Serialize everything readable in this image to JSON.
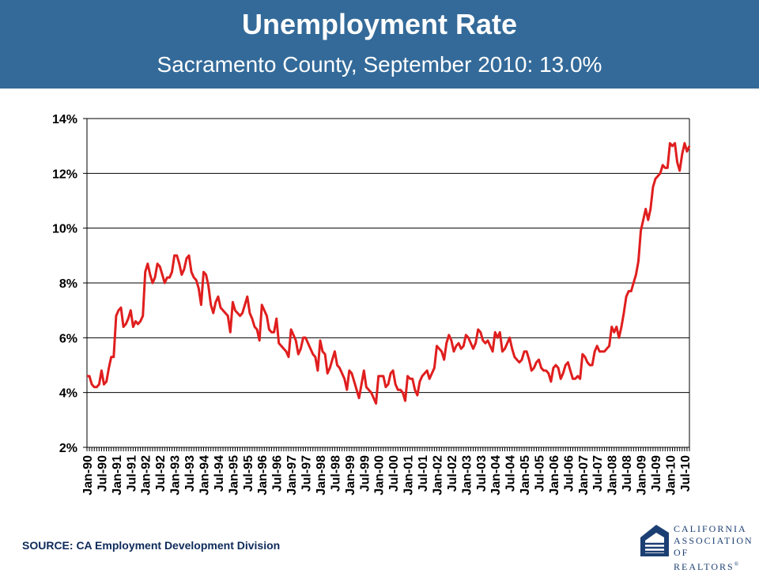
{
  "header": {
    "title": "Unemployment Rate",
    "subtitle": "Sacramento County, September 2010: 13.0%"
  },
  "source": "SOURCE: CA  Employment  Development  Division",
  "logo": {
    "lines": [
      "CALIFORNIA",
      "ASSOCIATION",
      "OF REALTORS"
    ],
    "mark": "®"
  },
  "colors": {
    "banner": "#336a99",
    "series": "#e01e1e",
    "grid": "#000000"
  },
  "chart_data": {
    "type": "line",
    "title": "Unemployment Rate",
    "subtitle": "Sacramento County, September 2010: 13.0%",
    "xlabel": "",
    "ylabel": "",
    "ylim": [
      2,
      14
    ],
    "yticks": [
      2,
      4,
      6,
      8,
      10,
      12,
      14
    ],
    "ytick_labels": [
      "2%",
      "4%",
      "6%",
      "8%",
      "10%",
      "12%",
      "14%"
    ],
    "grid": "horizontal",
    "legend": "none",
    "x_start": "Jan-90",
    "x_end": "Sep-10",
    "xtick_labels": [
      "Jan-90",
      "Jul-90",
      "Jan-91",
      "Jul-91",
      "Jan-92",
      "Jul-92",
      "Jan-93",
      "Jul-93",
      "Jan-94",
      "Jul-94",
      "Jan-95",
      "Jul-95",
      "Jan-96",
      "Jul-96",
      "Jan-97",
      "Jul-97",
      "Jan-98",
      "Jul-98",
      "Jan-99",
      "Jul-99",
      "Jan-00",
      "Jul-00",
      "Jan-01",
      "Jul-01",
      "Jan-02",
      "Jul-02",
      "Jan-03",
      "Jul-03",
      "Jan-04",
      "Jul-04",
      "Jan-05",
      "Jul-05",
      "Jan-06",
      "Jul-06",
      "Jan-07",
      "Jul-07",
      "Jan-08",
      "Jul-08",
      "Jan-09",
      "Jul-09",
      "Jan-10",
      "Jul-10"
    ],
    "series": [
      {
        "name": "",
        "color": "#e01e1e",
        "values": [
          4.6,
          4.6,
          4.3,
          4.2,
          4.2,
          4.3,
          4.8,
          4.3,
          4.4,
          4.9,
          5.3,
          5.3,
          6.8,
          7.0,
          7.1,
          6.4,
          6.5,
          6.7,
          7.0,
          6.4,
          6.6,
          6.5,
          6.6,
          6.8,
          8.4,
          8.7,
          8.3,
          8.0,
          8.2,
          8.7,
          8.6,
          8.3,
          8.0,
          8.2,
          8.2,
          8.4,
          9.0,
          9.0,
          8.7,
          8.3,
          8.5,
          8.9,
          9.0,
          8.4,
          8.2,
          8.1,
          7.8,
          7.2,
          8.4,
          8.3,
          7.9,
          7.2,
          6.9,
          7.3,
          7.5,
          7.1,
          7.0,
          6.9,
          6.8,
          6.2,
          7.3,
          7.0,
          6.9,
          6.8,
          6.9,
          7.2,
          7.5,
          6.9,
          6.7,
          6.4,
          6.3,
          5.9,
          7.2,
          7.0,
          6.8,
          6.3,
          6.2,
          6.2,
          6.7,
          5.8,
          5.7,
          5.6,
          5.5,
          5.3,
          6.3,
          6.1,
          5.9,
          5.4,
          5.6,
          6.0,
          6.0,
          5.8,
          5.6,
          5.4,
          5.3,
          4.8,
          5.9,
          5.5,
          5.4,
          4.7,
          4.9,
          5.2,
          5.5,
          5.0,
          4.9,
          4.7,
          4.5,
          4.1,
          4.8,
          4.7,
          4.4,
          4.1,
          3.8,
          4.3,
          4.8,
          4.2,
          4.1,
          4.0,
          3.8,
          3.6,
          4.6,
          4.6,
          4.6,
          4.2,
          4.3,
          4.7,
          4.8,
          4.3,
          4.1,
          4.1,
          4.0,
          3.7,
          4.6,
          4.5,
          4.5,
          4.1,
          3.9,
          4.4,
          4.6,
          4.7,
          4.8,
          4.5,
          4.7,
          4.9,
          5.7,
          5.6,
          5.5,
          5.2,
          5.8,
          6.1,
          5.9,
          5.5,
          5.7,
          5.8,
          5.6,
          5.7,
          6.1,
          6.0,
          5.8,
          5.6,
          5.8,
          6.3,
          6.2,
          5.9,
          5.8,
          5.9,
          5.7,
          5.5,
          6.2,
          6.0,
          6.2,
          5.5,
          5.6,
          5.8,
          6.0,
          5.6,
          5.3,
          5.2,
          5.1,
          5.2,
          5.5,
          5.5,
          5.2,
          4.8,
          4.9,
          5.1,
          5.2,
          4.9,
          4.8,
          4.8,
          4.7,
          4.4,
          4.9,
          5.0,
          4.9,
          4.5,
          4.7,
          5.0,
          5.1,
          4.8,
          4.5,
          4.5,
          4.6,
          4.5,
          5.4,
          5.3,
          5.1,
          5.0,
          5.0,
          5.5,
          5.7,
          5.5,
          5.5,
          5.5,
          5.6,
          5.7,
          6.4,
          6.2,
          6.4,
          6.0,
          6.4,
          6.9,
          7.5,
          7.7,
          7.7,
          8.0,
          8.3,
          8.8,
          9.9,
          10.3,
          10.7,
          10.3,
          10.7,
          11.5,
          11.8,
          11.9,
          12.0,
          12.3,
          12.2,
          12.2,
          13.1,
          13.0,
          13.1,
          12.4,
          12.1,
          12.7,
          13.1,
          12.8,
          13.0
        ]
      }
    ]
  }
}
